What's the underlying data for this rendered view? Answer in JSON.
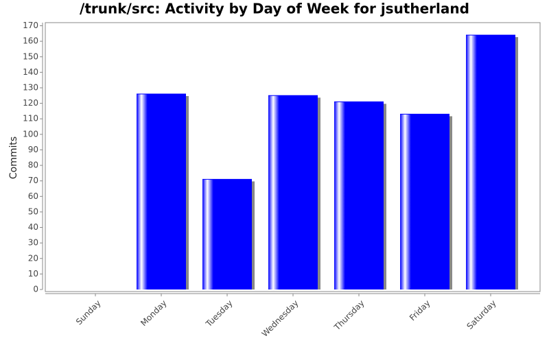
{
  "chart_data": {
    "type": "bar",
    "title": "/trunk/src: Activity by Day of Week for jsutherland",
    "y_label": "Commits",
    "categories": [
      "Sunday",
      "Monday",
      "Tuesday",
      "Wednesday",
      "Thursday",
      "Friday",
      "Saturday"
    ],
    "values": [
      0,
      126,
      71,
      125,
      121,
      113,
      164
    ],
    "color": "#0000ff",
    "ylim": [
      0,
      172
    ],
    "yticks": [
      0,
      10,
      20,
      30,
      40,
      50,
      60,
      70,
      80,
      90,
      100,
      110,
      120,
      130,
      140,
      150,
      160,
      170
    ],
    "grid": false
  }
}
